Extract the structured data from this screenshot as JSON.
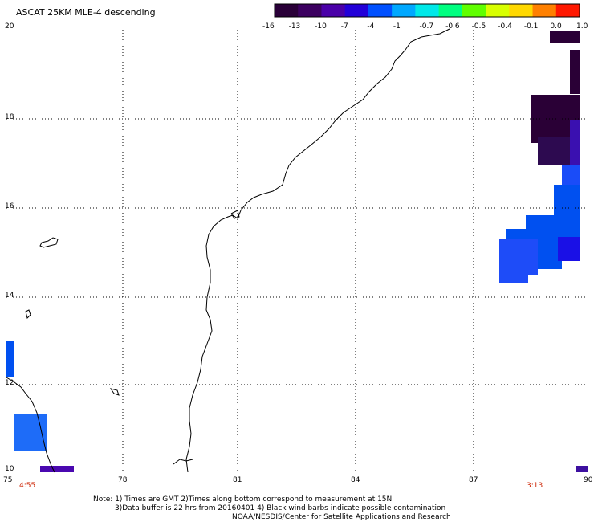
{
  "title": "ASCAT 25KM MLE-4 descending",
  "colorbar": {
    "labels": [
      "-16",
      "-13",
      "-10",
      "-7",
      "-4",
      "-1",
      "-0.7",
      "-0.6",
      "-0.5",
      "-0.4",
      "-0.1",
      "0.0",
      "1.0"
    ],
    "colors": [
      "#2a0038",
      "#3c0060",
      "#4a00a8",
      "#2200d8",
      "#0050ff",
      "#00a8ff",
      "#00e8e8",
      "#00ff80",
      "#60ff00",
      "#d8ff00",
      "#ffd800",
      "#ff8000",
      "#ff1800"
    ]
  },
  "axes": {
    "lon_labels": [
      "75",
      "78",
      "81",
      "84",
      "87",
      "90"
    ],
    "lat_labels": [
      "20",
      "18",
      "16",
      "14",
      "12",
      "10"
    ]
  },
  "times": {
    "left": "4:55",
    "right": "3:13"
  },
  "notes": {
    "line1": "Note: 1) Times are GMT 2)Times along bottom correspond to measurement at 15N",
    "line2": "3)Data buffer is 22 hrs from 20160401 4) Black wind barbs indicate possible contamination",
    "line3": "NOAA/NESDIS/Center for Satellite Applications and Research"
  },
  "palette": {
    "dark": "#2a0036",
    "purple": "#3d0a6e",
    "blue": "#0050f0",
    "midblue": "#1e4cf8",
    "deepblue": "#1a10e6"
  }
}
